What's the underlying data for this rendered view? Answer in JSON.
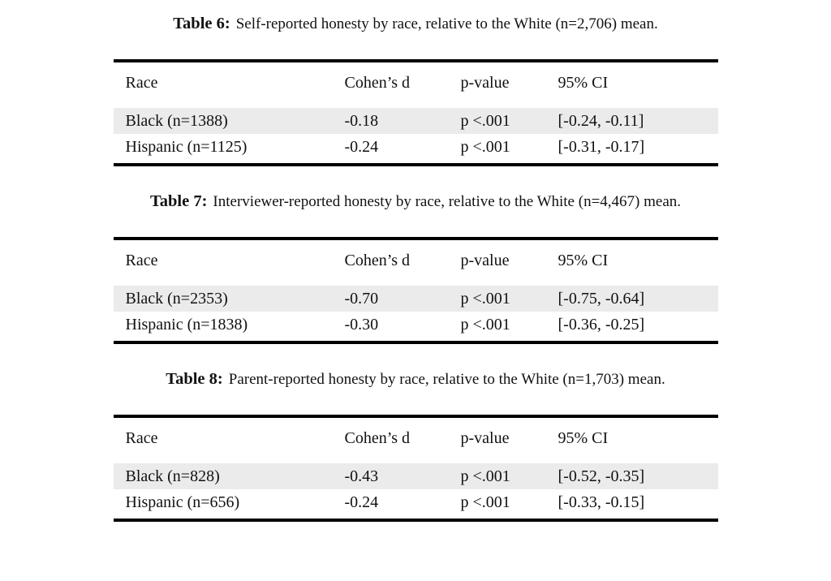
{
  "document": {
    "background": "#ffffff",
    "text_color": "#111111",
    "rule_color": "#000000",
    "row_shade_color": "#ebebeb"
  },
  "tables": [
    {
      "label": "Table 6:",
      "caption": "Self-reported honesty by race, relative to the White (n=2,706) mean.",
      "columns": [
        "Race",
        "Cohen’s d",
        "p-value",
        "95% CI"
      ],
      "rows": [
        {
          "race": "Black (n=1388)",
          "cohens_d": "-0.18",
          "p_value": "p <.001",
          "ci": "[-0.24, -0.11]"
        },
        {
          "race": "Hispanic (n=1125)",
          "cohens_d": "-0.24",
          "p_value": "p <.001",
          "ci": "[-0.31, -0.17]"
        }
      ]
    },
    {
      "label": "Table 7:",
      "caption": "Interviewer-reported honesty by race, relative to the White (n=4,467) mean.",
      "columns": [
        "Race",
        "Cohen’s d",
        "p-value",
        "95% CI"
      ],
      "rows": [
        {
          "race": "Black (n=2353)",
          "cohens_d": "-0.70",
          "p_value": "p <.001",
          "ci": "[-0.75, -0.64]"
        },
        {
          "race": "Hispanic (n=1838)",
          "cohens_d": "-0.30",
          "p_value": "p <.001",
          "ci": "[-0.36, -0.25]"
        }
      ]
    },
    {
      "label": "Table 8:",
      "caption": "Parent-reported honesty by race, relative to the White (n=1,703) mean.",
      "columns": [
        "Race",
        "Cohen’s d",
        "p-value",
        "95% CI"
      ],
      "rows": [
        {
          "race": "Black (n=828)",
          "cohens_d": "-0.43",
          "p_value": "p <.001",
          "ci": "[-0.52, -0.35]"
        },
        {
          "race": "Hispanic (n=656)",
          "cohens_d": "-0.24",
          "p_value": "p <.001",
          "ci": "[-0.33, -0.15]"
        }
      ]
    }
  ]
}
